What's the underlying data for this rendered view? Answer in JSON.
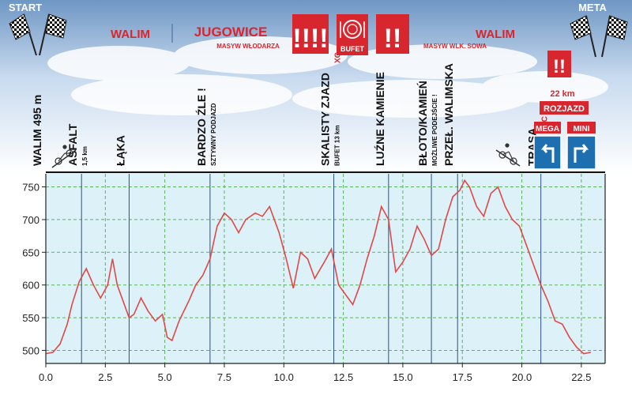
{
  "header": {
    "start": "START",
    "meta": "META",
    "walim_left": "WALIM",
    "jugowice": "JUGOWICE",
    "masyw_wlodarza": "MASYW WŁODARZA",
    "masyw_sowa": "MASYW WLK. SOWA",
    "walim_right": "WALIM",
    "xc": "XC",
    "bufet": "BUFET",
    "warning4": "!!!!",
    "warning2": "!!",
    "warning2b": "!!",
    "rozjazd_km": "22 km",
    "rozjazd": "ROZJAZD",
    "mega": "MEGA",
    "mini": "MINI",
    "colors": {
      "sky_top": "#6f97c4",
      "sky_bottom": "#eef4fb",
      "red": "#d7262e",
      "sign_blue": "#1e6fb0",
      "plot_bg": "#ddf1f8",
      "profile": "#e04848",
      "grid": "#58b558"
    }
  },
  "annotations": [
    {
      "text": "WALIM 495 m",
      "sub": "",
      "km": 0.0
    },
    {
      "text": "ASFALT",
      "sub": "1,5 km",
      "km": 1.5
    },
    {
      "text": "ŁĄKA",
      "sub": "",
      "km": 3.5
    },
    {
      "text": "BARDZO ŹLE !",
      "sub": "SZTYWNY PODJAZD",
      "km": 6.9
    },
    {
      "text": "SKALISTY ZJAZD",
      "sub": "BUFET 13 km",
      "extra": "XC",
      "km": 12.1
    },
    {
      "text": "LUŹNE KAMIENIE",
      "sub": "",
      "km": 14.4
    },
    {
      "text": "BŁOTO/KAMIEŃ",
      "sub": "MOŻLIWE PODEJŚCIE !",
      "km": 16.2
    },
    {
      "text": "PRZEŁ. WALIMSKA",
      "sub": "",
      "km": 17.3
    },
    {
      "text": "TRASA",
      "sub": "",
      "extra": "XC",
      "km": 20.8
    }
  ],
  "chart_data": {
    "type": "area",
    "title": "",
    "xlabel": "",
    "ylabel": "",
    "xlim": [
      0,
      23.5
    ],
    "ylim": [
      480,
      770
    ],
    "x_ticks": [
      0.0,
      2.5,
      5.0,
      7.5,
      10.0,
      12.5,
      15.0,
      17.5,
      20.0,
      22.5
    ],
    "x_tick_labels": [
      "0.0",
      "2.5",
      "5.0",
      "7.5",
      "10.0",
      "12.5",
      "15.0",
      "17.5",
      "20.0",
      "22.5"
    ],
    "y_ticks": [
      500,
      550,
      600,
      650,
      700,
      750
    ],
    "y_tick_labels": [
      "500",
      "550",
      "600",
      "650",
      "700",
      "750"
    ],
    "grid": true,
    "series": [
      {
        "x": [
          0.0,
          0.3,
          0.6,
          0.9,
          1.1,
          1.4,
          1.7,
          2.0,
          2.3,
          2.6,
          2.8,
          3.0,
          3.2,
          3.5,
          3.7,
          4.0,
          4.3,
          4.6,
          4.9,
          5.1,
          5.3,
          5.6,
          6.0,
          6.3,
          6.6,
          6.9,
          7.2,
          7.5,
          7.8,
          8.1,
          8.4,
          8.8,
          9.1,
          9.4,
          9.8,
          10.1,
          10.4,
          10.7,
          11.0,
          11.3,
          11.7,
          12.0,
          12.3,
          12.6,
          12.9,
          13.2,
          13.5,
          13.8,
          14.1,
          14.4,
          14.7,
          15.0,
          15.3,
          15.6,
          15.9,
          16.2,
          16.5,
          16.8,
          17.1,
          17.4,
          17.6,
          17.8,
          18.1,
          18.4,
          18.7,
          19.0,
          19.3,
          19.6,
          19.9,
          20.2,
          20.5,
          20.8,
          21.1,
          21.4,
          21.7,
          22.0,
          22.3,
          22.6,
          22.9
        ],
        "y": [
          495,
          497,
          510,
          540,
          570,
          605,
          625,
          600,
          580,
          600,
          640,
          600,
          580,
          550,
          555,
          580,
          560,
          545,
          555,
          520,
          515,
          545,
          575,
          600,
          615,
          640,
          690,
          710,
          700,
          680,
          700,
          710,
          705,
          720,
          680,
          640,
          595,
          650,
          640,
          610,
          635,
          655,
          600,
          585,
          570,
          600,
          640,
          675,
          720,
          700,
          620,
          635,
          655,
          690,
          670,
          645,
          655,
          700,
          735,
          745,
          760,
          750,
          720,
          705,
          740,
          750,
          720,
          700,
          690,
          660,
          630,
          600,
          575,
          545,
          540,
          520,
          505,
          495,
          497
        ]
      }
    ]
  }
}
